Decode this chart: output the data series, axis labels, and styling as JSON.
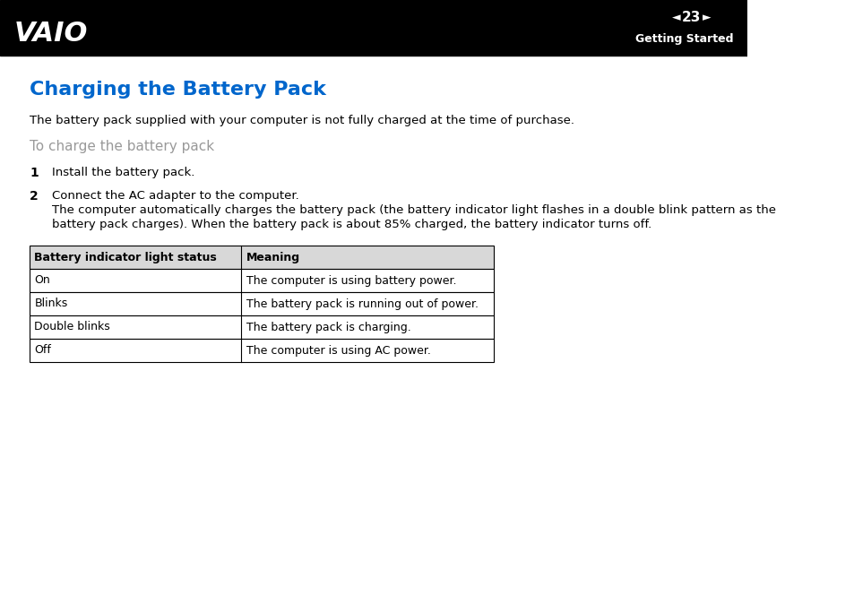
{
  "header_bg": "#000000",
  "header_text_color": "#ffffff",
  "header_logo_color": "#ffffff",
  "page_number": "23",
  "section_title": "Getting Started",
  "main_title": "Charging the Battery Pack",
  "main_title_color": "#0066cc",
  "intro_text": "The battery pack supplied with your computer is not fully charged at the time of purchase.",
  "subheading": "To charge the battery pack",
  "subheading_color": "#999999",
  "step1_num": "1",
  "step1_text": "Install the battery pack.",
  "step2_num": "2",
  "step2_line1": "Connect the AC adapter to the computer.",
  "step2_line2a": "The computer automatically charges the battery pack (the battery indicator light flashes in a double blink pattern as the",
  "step2_line2b": "battery pack charges). When the battery pack is about 85% charged, the battery indicator turns off.",
  "table_header_col1": "Battery indicator light status",
  "table_header_col2": "Meaning",
  "table_rows": [
    [
      "On",
      "The computer is using battery power."
    ],
    [
      "Blinks",
      "The battery pack is running out of power."
    ],
    [
      "Double blinks",
      "The battery pack is charging."
    ],
    [
      "Off",
      "The computer is using AC power."
    ]
  ],
  "body_bg": "#ffffff",
  "body_text_color": "#000000",
  "table_border_color": "#000000",
  "page_bg": "#ffffff"
}
